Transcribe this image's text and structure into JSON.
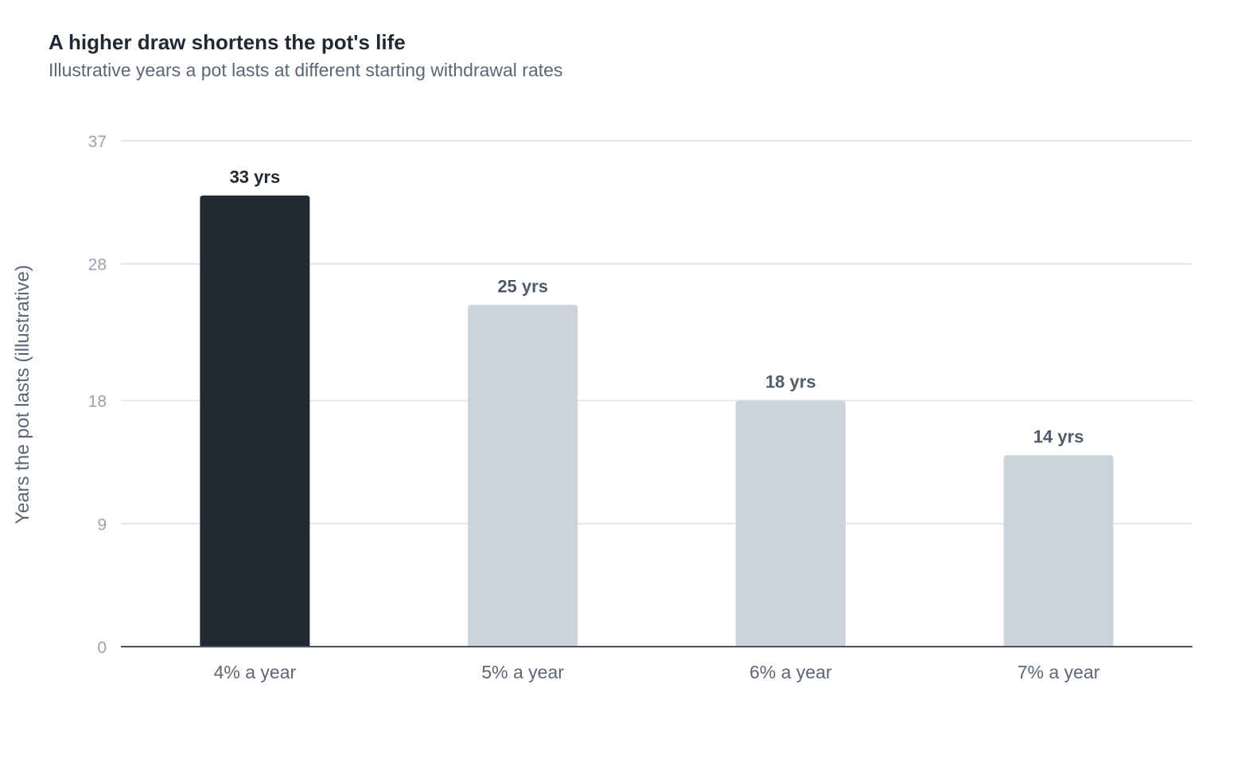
{
  "chart_data": {
    "type": "bar",
    "title": "A higher draw shortens the pot's life",
    "subtitle": "Illustrative years a pot lasts at different starting withdrawal rates",
    "xlabel": "",
    "ylabel": "Years the pot lasts (illustrative)",
    "categories": [
      "4% a year",
      "5% a year",
      "6% a year",
      "7% a year"
    ],
    "values": [
      33,
      25,
      18,
      14
    ],
    "value_labels": [
      "33 yrs",
      "25 yrs",
      "18 yrs",
      "14 yrs"
    ],
    "ylim": [
      0,
      37
    ],
    "yticks": [
      0,
      9,
      18,
      28,
      37
    ],
    "grid": true,
    "highlight_index": 0,
    "colors": {
      "highlight": "#212a33",
      "bar": "#ccd3da",
      "highlight_label": "#1f2933",
      "label": "#4f5b68",
      "grid": "#e3e6ea",
      "baseline": "#4a5562"
    }
  }
}
